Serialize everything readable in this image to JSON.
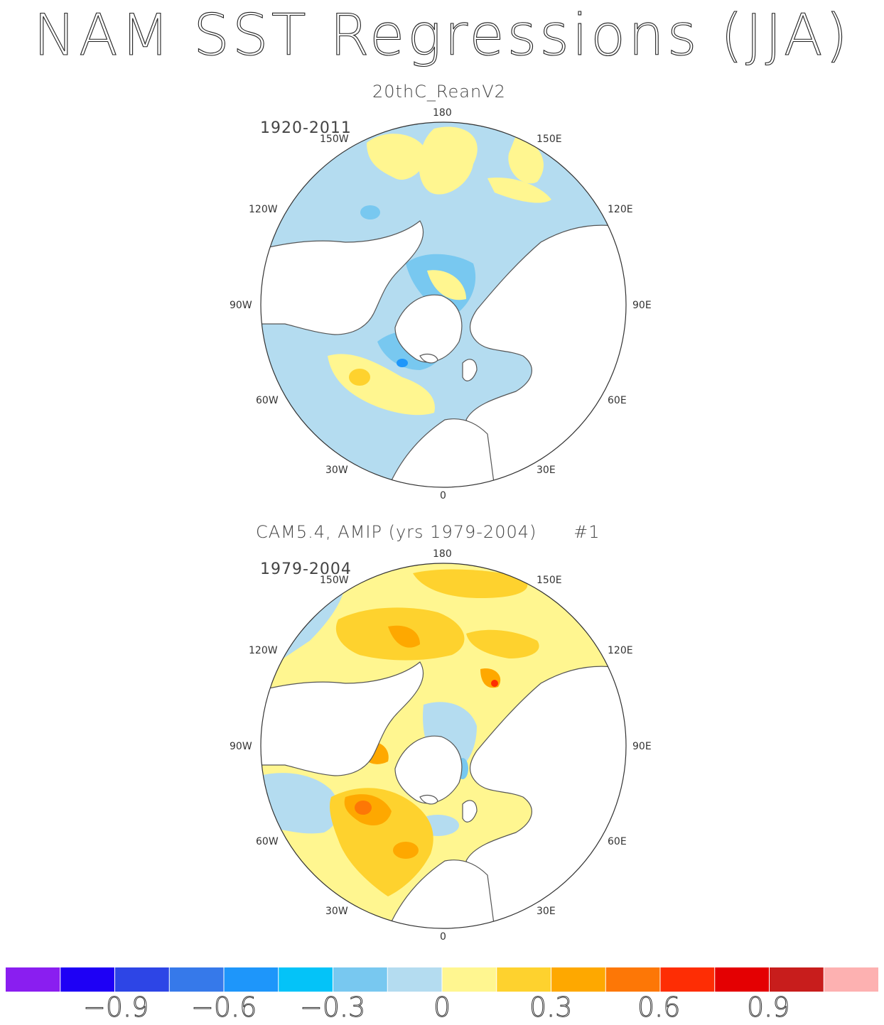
{
  "title": "NAM SST Regressions (JJA)",
  "panels": [
    {
      "title": "20thC_ReanV2",
      "period": "1920-2011",
      "lon_labels": {
        "n180": "180",
        "w150": "150W",
        "e150": "150E",
        "w120": "120W",
        "e120": "120E",
        "w90": "90W",
        "e90": "90E",
        "w60": "60W",
        "e60": "60E",
        "w30": "30W",
        "e30": "30E",
        "zero": "0"
      }
    },
    {
      "title": "CAM5.4, AMIP (yrs 1979-2004)      #1",
      "period": "1979-2004",
      "lon_labels": {
        "n180": "180",
        "w150": "150W",
        "e150": "150E",
        "w120": "120W",
        "e120": "120E",
        "w90": "90W",
        "e90": "90E",
        "w60": "60W",
        "e60": "60E",
        "w30": "30W",
        "e30": "30E",
        "zero": "0"
      }
    }
  ],
  "colorbar": {
    "colors": [
      "#8a1ef0",
      "#1e00f5",
      "#2d45e6",
      "#3679ea",
      "#1e96fa",
      "#04c3f8",
      "#78c8f0",
      "#b4dcf0",
      "#fff690",
      "#fed22e",
      "#fea800",
      "#fd7706",
      "#fe2d04",
      "#e40002",
      "#c81d1c",
      "#fdb1b1"
    ],
    "labels": [
      "−0.9",
      "−0.6",
      "−0.3",
      "0",
      "0.3",
      "0.6",
      "0.9"
    ]
  },
  "legend_colors": {
    "land": "#ffffff",
    "coast": "#555555"
  }
}
